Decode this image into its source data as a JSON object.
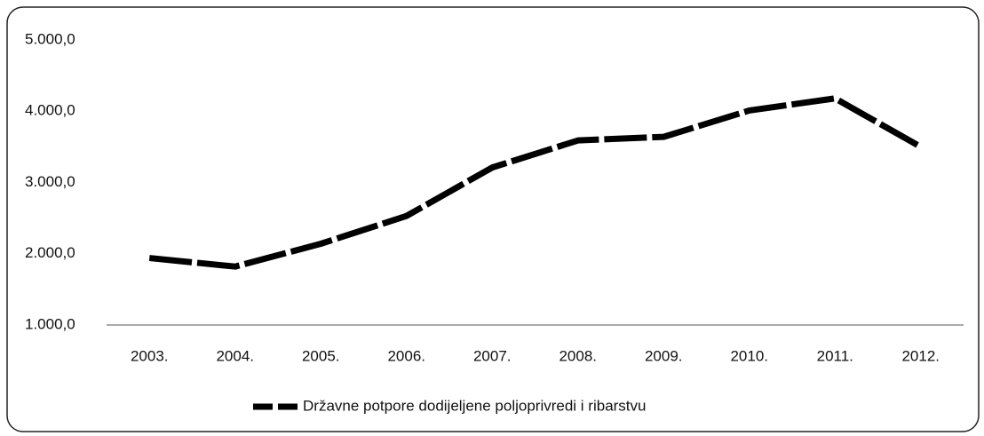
{
  "chart_data": {
    "type": "line",
    "categories": [
      "2003.",
      "2004.",
      "2005.",
      "2006.",
      "2007.",
      "2008.",
      "2009.",
      "2010.",
      "2011.",
      "2012."
    ],
    "series": [
      {
        "name": "Državne potpore dodijeljene poljoprivredi i ribarstvu",
        "color": "#000000",
        "values": [
          1940,
          1820,
          2140,
          2530,
          3210,
          3590,
          3640,
          4010,
          4180,
          3500
        ]
      }
    ],
    "ylim": [
      1000,
      5000
    ],
    "yticks": [
      {
        "value": 1000,
        "label": "1.000,0"
      },
      {
        "value": 2000,
        "label": "2.000,0"
      },
      {
        "value": 3000,
        "label": "3.000,0"
      },
      {
        "value": 4000,
        "label": "4.000,0"
      },
      {
        "value": 5000,
        "label": "5.000,0"
      }
    ],
    "grid": false,
    "legend": "bottom"
  }
}
